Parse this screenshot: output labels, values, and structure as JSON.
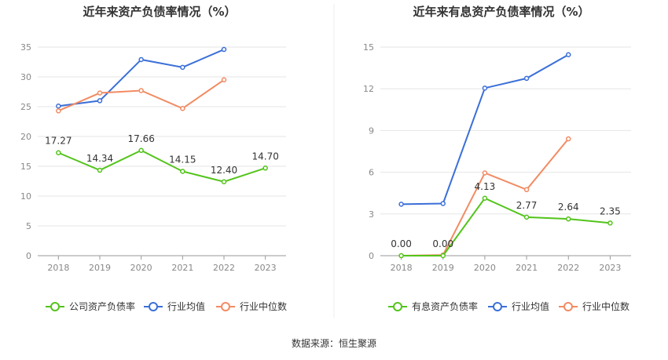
{
  "chart_data": [
    {
      "type": "line",
      "title": "近年来资产负债率情况（%）",
      "categories": [
        "2018",
        "2019",
        "2020",
        "2021",
        "2022",
        "2023"
      ],
      "ylim": [
        0,
        35
      ],
      "yticks": [
        0,
        5,
        10,
        15,
        20,
        25,
        30,
        35
      ],
      "grid": true,
      "legend_position": "bottom",
      "series": [
        {
          "name": "公司资产负债率",
          "color": "#52c41a",
          "show_labels": true,
          "values": [
            17.27,
            14.34,
            17.66,
            14.15,
            12.4,
            14.7
          ],
          "labels": [
            "17.27",
            "14.34",
            "17.66",
            "14.15",
            "12.40",
            "14.70"
          ]
        },
        {
          "name": "行业均值",
          "color": "#3a6fd8",
          "show_labels": false,
          "values": [
            25.1,
            26.0,
            32.9,
            31.6,
            34.6,
            null
          ]
        },
        {
          "name": "行业中位数",
          "color": "#f28b63",
          "show_labels": false,
          "values": [
            24.3,
            27.3,
            27.7,
            24.7,
            29.5,
            null
          ]
        }
      ]
    },
    {
      "type": "line",
      "title": "近年来有息资产负债率情况（%）",
      "categories": [
        "2018",
        "2019",
        "2020",
        "2021",
        "2022",
        "2023"
      ],
      "ylim": [
        0,
        15
      ],
      "yticks": [
        0,
        3,
        6,
        9,
        12,
        15
      ],
      "grid": true,
      "legend_position": "bottom",
      "series": [
        {
          "name": "有息资产负债率",
          "color": "#52c41a",
          "show_labels": true,
          "values": [
            0.0,
            0.0,
            4.13,
            2.77,
            2.64,
            2.35
          ],
          "labels": [
            "0.00",
            "0.00",
            "4.13",
            "2.77",
            "2.64",
            "2.35"
          ]
        },
        {
          "name": "行业均值",
          "color": "#3a6fd8",
          "show_labels": false,
          "values": [
            3.7,
            3.75,
            12.05,
            12.75,
            14.45,
            null
          ]
        },
        {
          "name": "行业中位数",
          "color": "#f28b63",
          "show_labels": false,
          "values": [
            0.0,
            0.05,
            5.95,
            4.75,
            8.4,
            null
          ]
        }
      ]
    }
  ],
  "footer": {
    "source": "数据来源：恒生聚源"
  }
}
